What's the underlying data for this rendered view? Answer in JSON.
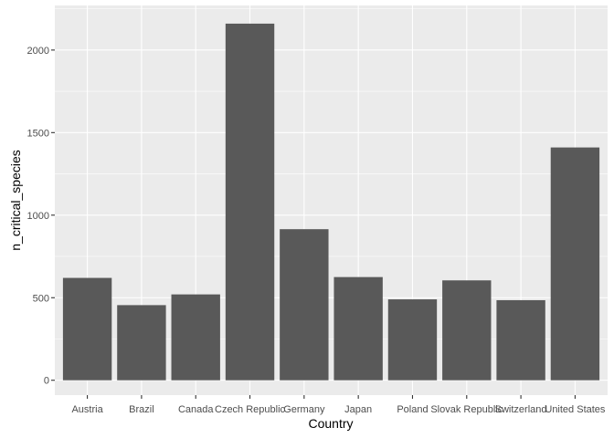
{
  "chart_data": {
    "type": "bar",
    "title": "",
    "xlabel": "Country",
    "ylabel": "n_critical_species",
    "categories": [
      "Austria",
      "Brazil",
      "Canada",
      "Czech Republic",
      "Germany",
      "Japan",
      "Poland",
      "Slovak Republic",
      "Switzerland",
      "United States"
    ],
    "values": [
      620,
      455,
      520,
      2160,
      915,
      625,
      490,
      605,
      485,
      1410
    ],
    "ylim": [
      -90,
      2270
    ],
    "yticks": [
      0,
      500,
      1000,
      1500,
      2000
    ],
    "grid": true,
    "legend": "none",
    "colors": {
      "bar": "#595959",
      "panel": "#ebebeb",
      "grid_major": "#ffffff",
      "tick_text": "#4d4d4d",
      "title_text": "#000000"
    }
  }
}
